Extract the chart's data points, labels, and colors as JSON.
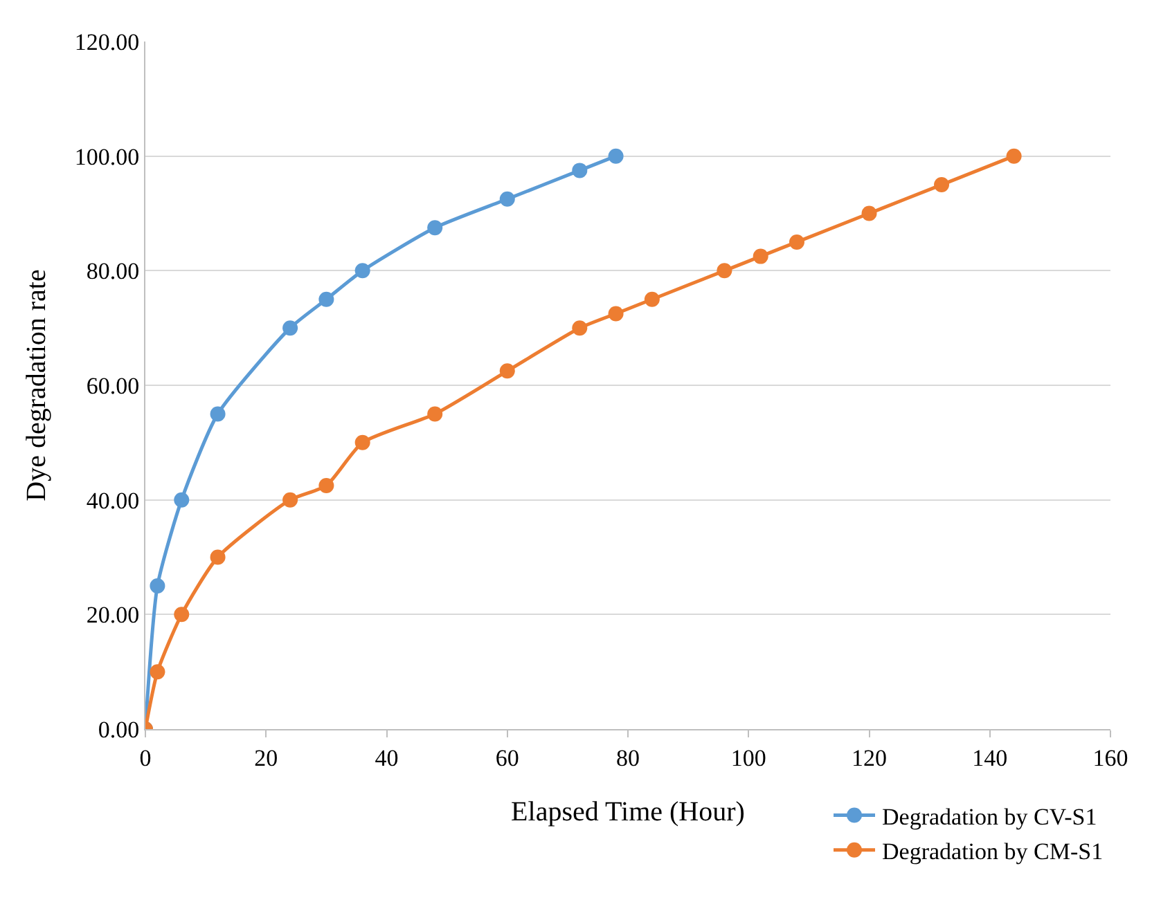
{
  "chart_data": {
    "type": "line",
    "xlabel": "Elapsed Time (Hour)",
    "ylabel": "Dye degradation rate",
    "series": [
      {
        "name": "Degradation by CV-S1",
        "color": "#5b9bd5",
        "x": [
          0,
          2,
          6,
          12,
          24,
          30,
          36,
          48,
          60,
          72,
          78
        ],
        "values": [
          0,
          25,
          40,
          55,
          70,
          75,
          80,
          87.5,
          92.5,
          97.5,
          100
        ]
      },
      {
        "name": "Degradation by CM-S1",
        "color": "#ed7d31",
        "x": [
          0,
          2,
          6,
          12,
          24,
          30,
          36,
          48,
          60,
          72,
          78,
          84,
          96,
          102,
          108,
          120,
          132,
          144
        ],
        "values": [
          0,
          10,
          20,
          30,
          40,
          42.5,
          50,
          55,
          62.5,
          70,
          72.5,
          75,
          80,
          82.5,
          85,
          90,
          95,
          100
        ]
      }
    ],
    "xlim": [
      0,
      160
    ],
    "xticks": [
      0,
      20,
      40,
      60,
      80,
      100,
      120,
      140,
      160
    ],
    "ylim": [
      0,
      120
    ],
    "yticks": [
      {
        "value": 0,
        "label": "0.00"
      },
      {
        "value": 20,
        "label": "20.00"
      },
      {
        "value": 40,
        "label": "40.00"
      },
      {
        "value": 60,
        "label": "60.00"
      },
      {
        "value": 80,
        "label": "80.00"
      },
      {
        "value": 100,
        "label": "100.00"
      },
      {
        "value": 120,
        "label": "120.00"
      }
    ],
    "grid": "y",
    "legend": "bottom right",
    "marker": "circle",
    "line_style": "solid"
  }
}
